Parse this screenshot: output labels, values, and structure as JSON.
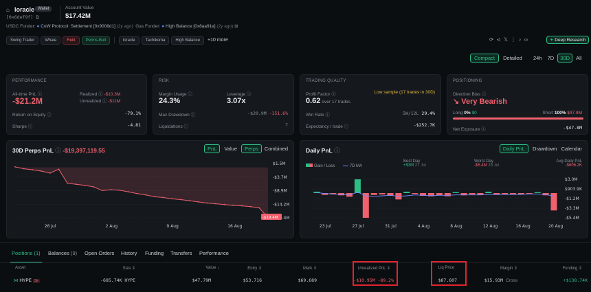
{
  "header": {
    "name": "loracle",
    "badge": "Wallet",
    "address": "[0x6def9f]",
    "account_label": "Account Value",
    "account_value": "$17.42M",
    "usdc_funder_label": "USDC Funder:",
    "usdc_funder": "CoW Protocol: Settlement [0x9008d1]",
    "usdc_funder_age": "(2y ago)",
    "gas_funder_label": "Gas Funder:",
    "gas_funder": "High Balance [0x8aa91e]",
    "gas_funder_age": "(2y ago)"
  },
  "tags": [
    "Swing Trader",
    "Whale",
    "Rekt",
    "Perms-Bull"
  ],
  "tags2": [
    "loracle",
    "Tachikoma",
    "High Balance"
  ],
  "more_tags": "+10 more",
  "deep_research": "Deep Research",
  "view": {
    "compact": "Compact",
    "detailed": "Detailed",
    "ranges": [
      "24h",
      "7D",
      "30D",
      "All"
    ]
  },
  "performance": {
    "title": "PERFORMANCE",
    "alltime_label": "All-time PnL",
    "alltime_value": "-$21.2M",
    "realized_label": "Realized",
    "realized_value": "-$10.3M",
    "unrealized_label": "Unrealized",
    "unrealized_value": "-$11M",
    "roe_label": "Return on Equity",
    "roe_value": "-79.1%",
    "sharpe_label": "Sharpe",
    "sharpe_value": "-4.81"
  },
  "risk": {
    "title": "RISK",
    "margin_label": "Margin Usage",
    "margin_value": "24.3%",
    "leverage_label": "Leverage",
    "leverage_value": "3.07x",
    "dd_label": "Max Drawdown",
    "dd_value": "-$20.9M",
    "dd_pct": "-151.6%",
    "liq_label": "Liquidations",
    "liq_value": "7"
  },
  "trading": {
    "title": "TRADING QUALITY",
    "pf_label": "Profit Factor",
    "pf_value": "0.62",
    "pf_sub": "over 17 trades",
    "warning": "Low sample (17 trades in 30D)",
    "winrate_label": "Win Rate",
    "winrate_value": "5W/12L",
    "winrate_pct": "29.4%",
    "exp_label": "Expectancy / trade",
    "exp_value": "-$252.7K"
  },
  "positioning": {
    "title": "POSITIONING",
    "bias_label": "Direction Bias",
    "bias_value": "Very Bearish",
    "long_label": "Long",
    "long_pct": "0%",
    "long_amt": "$0",
    "short_label": "Short",
    "short_pct": "100%",
    "short_amt": "$47.8M",
    "net_label": "Net Exposure",
    "net_value": "-$47.8M"
  },
  "perps_chart": {
    "title": "30D Perps PnL",
    "value": "-$19,397,119.55",
    "tabs": [
      "PnL",
      "Value",
      "Perps",
      "Combined"
    ],
    "y_ticks": [
      "$1.5M",
      "-$3.7M",
      "-$8.9M",
      "-$14.2M",
      "-$19.4M"
    ],
    "x_ticks": [
      "26 Jul",
      "2 Aug",
      "9 Aug",
      "16 Aug"
    ],
    "end_label": "-$19.4M"
  },
  "daily_chart": {
    "title": "Daily PnL",
    "tabs": [
      "Daily PnL",
      "Drawdown",
      "Calendar"
    ],
    "legend_gain": "Gain / Loss",
    "legend_ma": "7D MA",
    "best_label": "Best Day",
    "best_value": "+$3M",
    "best_date": "27 Jul",
    "worst_label": "Worst Day",
    "worst_value": "-$5.4M",
    "worst_date": "28 Jul",
    "avg_label": "Avg Daily PnL",
    "avg_value": "-$606.2K",
    "y_ticks": [
      "$3.0M",
      "$903.9K",
      "-$1.2M",
      "-$3.3M",
      "-$5.4M"
    ],
    "x_ticks": [
      "23 Jul",
      "27 Jul",
      "31 Jul",
      "4 Aug",
      "8 Aug",
      "12 Aug",
      "16 Aug",
      "20 Aug"
    ]
  },
  "chart_data": [
    {
      "type": "area",
      "title": "30D Perps PnL",
      "x": [
        "22 Jul",
        "23 Jul",
        "24 Jul",
        "25 Jul",
        "26 Jul",
        "27 Jul",
        "28 Jul",
        "29 Jul",
        "30 Jul",
        "31 Jul",
        "1 Aug",
        "2 Aug",
        "3 Aug",
        "4 Aug",
        "5 Aug",
        "6 Aug",
        "7 Aug",
        "8 Aug",
        "9 Aug",
        "10 Aug",
        "11 Aug",
        "12 Aug",
        "13 Aug",
        "14 Aug",
        "15 Aug",
        "16 Aug",
        "17 Aug",
        "18 Aug",
        "19 Aug",
        "20 Aug"
      ],
      "series": [
        {
          "values": [
            0.2,
            -0.5,
            -0.9,
            -1.4,
            -2.2,
            -0.7,
            -6.1,
            -6.5,
            -6.9,
            -7.5,
            -8.9,
            -8.6,
            -8.8,
            -9.4,
            -10.1,
            -10.6,
            -11.3,
            -11.6,
            -12.1,
            -12.4,
            -12.8,
            -13.3,
            -13.7,
            -14.0,
            -14.3,
            -14.6,
            -14.8,
            -15.1,
            -15.6,
            -19.4
          ]
        }
      ],
      "ylim": [
        -19.4,
        1.5
      ],
      "y_unit": "$M"
    },
    {
      "type": "bar",
      "title": "Daily PnL",
      "x": [
        "22 Jul",
        "23 Jul",
        "24 Jul",
        "25 Jul",
        "26 Jul",
        "27 Jul",
        "28 Jul",
        "29 Jul",
        "30 Jul",
        "31 Jul",
        "1 Aug",
        "2 Aug",
        "3 Aug",
        "4 Aug",
        "5 Aug",
        "6 Aug",
        "7 Aug",
        "8 Aug",
        "9 Aug",
        "10 Aug",
        "11 Aug",
        "12 Aug",
        "13 Aug",
        "14 Aug",
        "15 Aug",
        "16 Aug",
        "17 Aug",
        "18 Aug",
        "19 Aug",
        "20 Aug"
      ],
      "series": [
        {
          "name": "Gain / Loss",
          "values": [
            0.3,
            -0.4,
            -0.3,
            -0.5,
            -0.8,
            3.0,
            -5.4,
            -0.4,
            -0.3,
            -0.6,
            -1.4,
            0.3,
            -0.2,
            -0.6,
            -0.7,
            -0.5,
            -0.7,
            0.2,
            -0.5,
            -0.3,
            -0.4,
            0.3,
            -0.4,
            -0.3,
            -0.3,
            -0.3,
            -0.2,
            0.2,
            -0.5,
            -3.8
          ]
        },
        {
          "name": "7D MA",
          "values": [
            0.1,
            -0.1,
            -0.2,
            -0.3,
            -0.4,
            0.2,
            -0.6,
            -0.7,
            -0.6,
            -0.5,
            -0.7,
            -0.6,
            -0.4,
            -0.5,
            -0.6,
            -0.5,
            -0.5,
            -0.4,
            -0.4,
            -0.4,
            -0.4,
            -0.3,
            -0.3,
            -0.3,
            -0.3,
            -0.3,
            -0.2,
            -0.2,
            -0.3,
            -0.7
          ]
        }
      ],
      "ylim": [
        -5.4,
        3.0
      ],
      "y_unit": "$M"
    }
  ],
  "tabs": {
    "positions": "Positions (1)",
    "balances": "Balances",
    "balances_count": "(9)",
    "orders": "Open Orders",
    "history": "History",
    "funding": "Funding",
    "transfers": "Transfers",
    "performance": "Performance"
  },
  "table": {
    "headers": [
      "Asset",
      "Size",
      "Value",
      "Entry",
      "Mark",
      "Unrealized PnL",
      "Liq Price",
      "Margin",
      "Funding"
    ],
    "row": {
      "asset": "HYPE",
      "lev": "3x",
      "size": "-685.74K HYPE",
      "value": "$47.79M",
      "entry": "$53.716",
      "mark": "$69.689",
      "upnl": "-$10.95M",
      "upnl_pct": "-89.2%",
      "liq": "$87.607",
      "margin": "$15.93M",
      "margin_type": "Cross",
      "funding": "+$138.74K"
    }
  },
  "colors": {
    "bg": "#0b0e11",
    "card": "#15191e",
    "green": "#2ebd85",
    "red": "#f0616d",
    "highlight": "#e0242e"
  }
}
